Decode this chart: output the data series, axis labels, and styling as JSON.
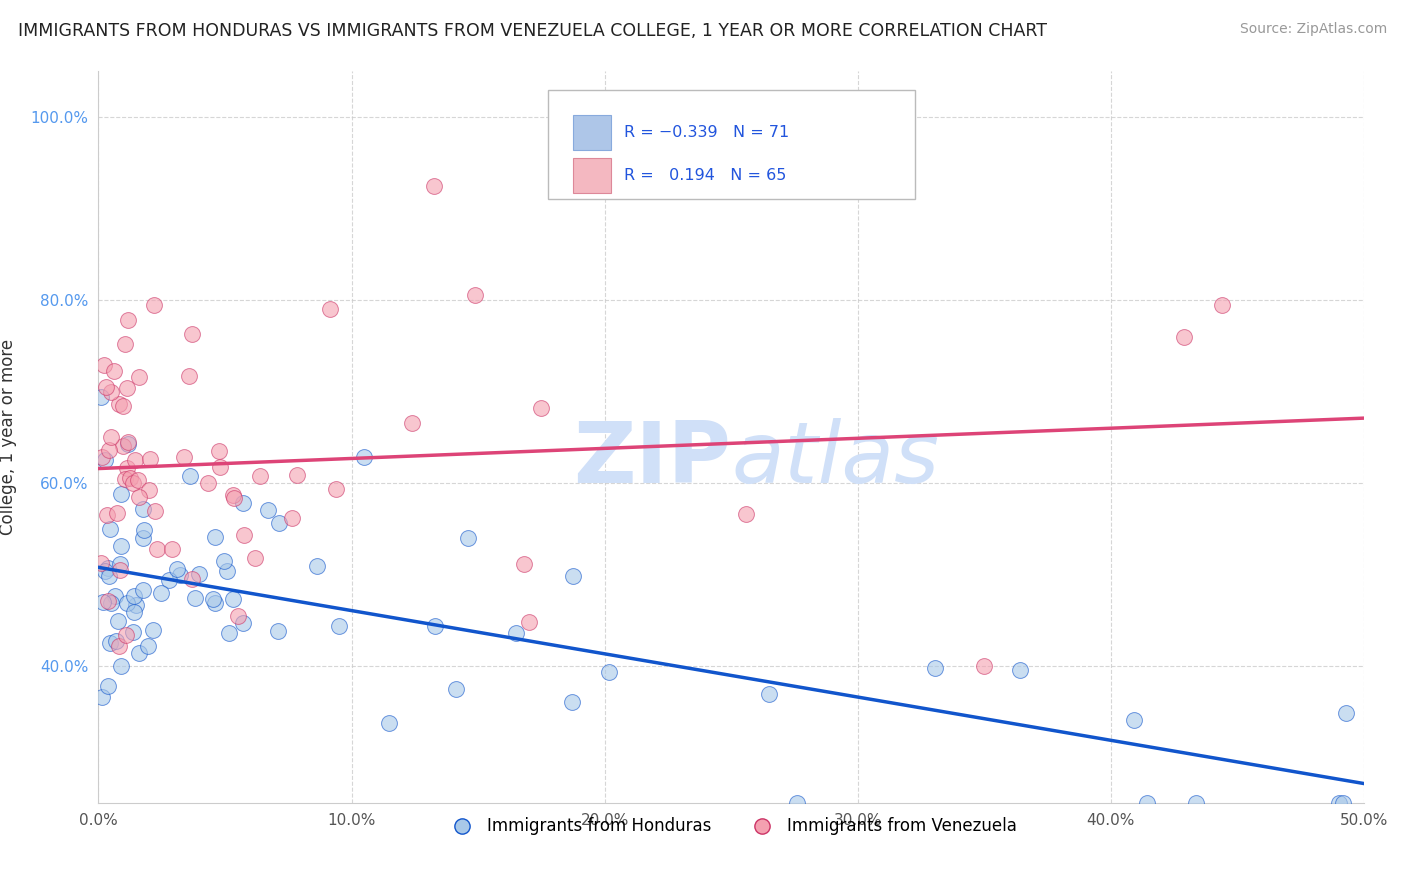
{
  "title": "IMMIGRANTS FROM HONDURAS VS IMMIGRANTS FROM VENEZUELA COLLEGE, 1 YEAR OR MORE CORRELATION CHART",
  "source": "Source: ZipAtlas.com",
  "ylabel": "College, 1 year or more",
  "xlim": [
    0.0,
    0.5
  ],
  "ylim": [
    0.25,
    1.05
  ],
  "xtick_values": [
    0.0,
    0.1,
    0.2,
    0.3,
    0.4,
    0.5
  ],
  "ytick_values": [
    0.4,
    0.6,
    0.8,
    1.0
  ],
  "ytick_labels": [
    "40.0%",
    "60.0%",
    "80.0%",
    "100.0%"
  ],
  "color_honduras": "#a8c8e8",
  "color_venezuela": "#f4a0b0",
  "color_line_honduras": "#1155cc",
  "color_line_venezuela": "#dd4477",
  "color_legend_box_honduras": "#aec6e8",
  "color_legend_box_venezuela": "#f4b8c1",
  "watermark_color": "#d0e0f8",
  "background_color": "#ffffff",
  "grid_color": "#cccccc"
}
